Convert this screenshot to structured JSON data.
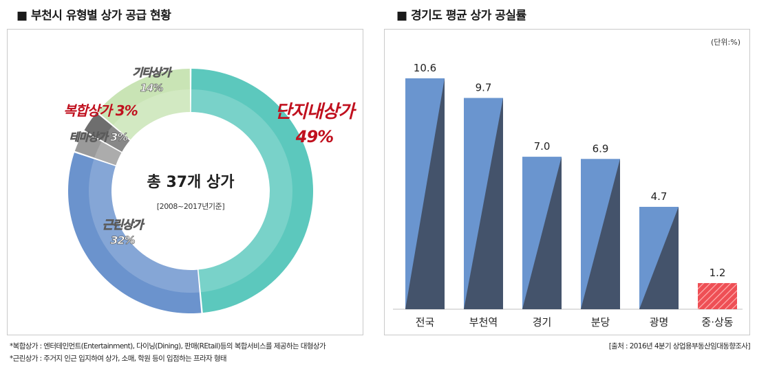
{
  "left": {
    "title": "■ 부천시 유형별 상가 공급 현황",
    "center_main": "총 37개 상가",
    "center_sub": "[2008~2017년기준]"
  },
  "right": {
    "title": "■ 경기도 평균 상가 공실률",
    "unit": "(단위:%)"
  },
  "footnotes": [
    "*복합상가 : 엔터테인먼트(Entertainment), 다이닝(Dining), 판매(REtail)등의 복합서비스를 제공하는 대형상가",
    "*근린상가 : 주거지 인근 입지하여 상가, 소매, 학원 등이 입점하는 프라자 형태"
  ],
  "source": "[출처 : 2016년 4분기 상업용부동산임대동향조사]",
  "chart_data": [
    {
      "type": "pie",
      "title": "부천시 유형별 상가 공급 현황",
      "slices": [
        {
          "name": "단지내상가",
          "label": "49%",
          "value": 49,
          "color": "#5cc8bd"
        },
        {
          "name": "근린상가",
          "label": "32%",
          "value": 32,
          "color": "#6b93cd"
        },
        {
          "name": "테마상가",
          "label": "3%",
          "value": 3,
          "color": "#9a9a9a"
        },
        {
          "name": "복합상가",
          "label": "3%",
          "value": 3,
          "color": "#6e6e6e"
        },
        {
          "name": "기타상가",
          "label": "14%",
          "value": 14,
          "color": "#c9e4b5"
        }
      ]
    },
    {
      "type": "bar",
      "title": "경기도 평균 상가 공실률",
      "categories": [
        "전국",
        "부천역",
        "경기",
        "분당",
        "광명",
        "중·상동"
      ],
      "values": [
        10.6,
        9.7,
        7.0,
        6.9,
        4.7,
        1.2
      ],
      "value_labels": [
        "10.6",
        "9.7",
        "7.0",
        "6.9",
        "4.7",
        "1.2"
      ],
      "ylabel": "(단위:%)",
      "ylim": [
        0,
        10.6
      ],
      "highlight_category": "중·상동",
      "colors": {
        "bar": "#6a95cf",
        "bar_shade": "#44536b",
        "highlight": "#ee4f55",
        "highlight_stripe": "#ffb0b0"
      }
    }
  ]
}
